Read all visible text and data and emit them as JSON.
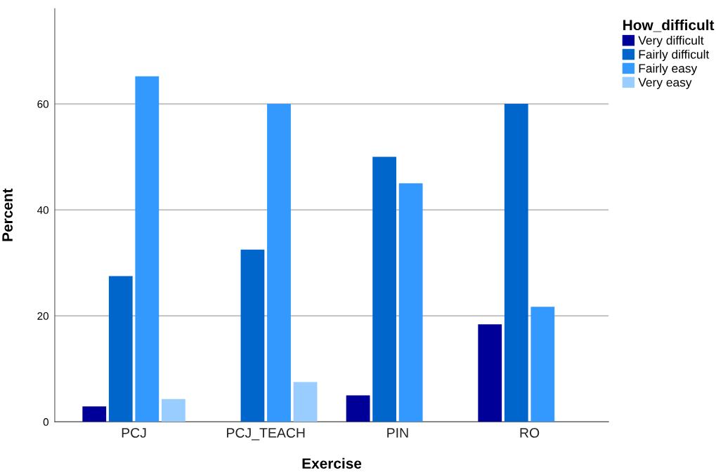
{
  "chart_data": {
    "type": "bar",
    "xlabel": "Exercise",
    "ylabel": "Percent",
    "legend_title": "How_difficult",
    "categories": [
      "PCJ",
      "PCJ_TEACH",
      "PIN",
      "RO"
    ],
    "series": [
      {
        "name": "Very difficult",
        "color": "#000099",
        "values": [
          2.9,
          null,
          5.0,
          18.4
        ]
      },
      {
        "name": "Fairly difficult",
        "color": "#0066cc",
        "values": [
          27.5,
          32.5,
          50.0,
          60.0
        ]
      },
      {
        "name": "Fairly easy",
        "color": "#3399ff",
        "values": [
          65.2,
          60.0,
          45.0,
          21.7
        ]
      },
      {
        "name": "Very easy",
        "color": "#99ccff",
        "values": [
          4.3,
          7.5,
          null,
          null
        ]
      }
    ],
    "ylim": [
      0,
      78
    ],
    "yticks": [
      0,
      20,
      40,
      60
    ],
    "grid": "y",
    "legend": "top right"
  }
}
